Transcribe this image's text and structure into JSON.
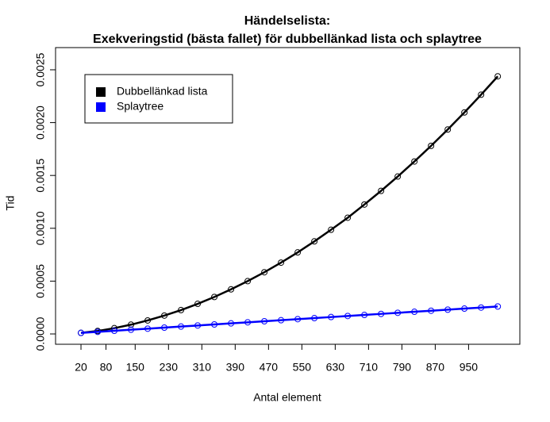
{
  "chart_data": {
    "type": "line",
    "title": "Händelselista:",
    "subtitle": "Exekveringstid (bästa fallet) för dubbellänkad lista och splaytree",
    "x_label": "Antal element",
    "y_label": "Tid",
    "x": [
      20,
      60,
      100,
      140,
      180,
      220,
      260,
      300,
      340,
      380,
      420,
      460,
      500,
      540,
      580,
      620,
      660,
      700,
      740,
      780,
      820,
      860,
      900,
      940,
      980,
      1020
    ],
    "series": [
      {
        "name": "Dubbellänkad lista",
        "color": "#000000",
        "values": [
          1e-05,
          2.8e-05,
          5.5e-05,
          8.8e-05,
          0.000128,
          0.000174,
          0.000226,
          0.000285,
          0.00035,
          0.000422,
          0.0005,
          0.000584,
          0.000675,
          0.000772,
          0.000876,
          0.000986,
          0.0011,
          0.001225,
          0.001354,
          0.00149,
          0.001632,
          0.00178,
          0.001935,
          0.002096,
          0.002264,
          0.002438
        ]
      },
      {
        "name": "Splaytree",
        "color": "#0000ff",
        "values": [
          1e-05,
          2e-05,
          3e-05,
          4e-05,
          5e-05,
          6e-05,
          7e-05,
          8e-05,
          9e-05,
          0.0001,
          0.00011,
          0.00012,
          0.00013,
          0.00014,
          0.00015,
          0.00016,
          0.00017,
          0.00018,
          0.00019,
          0.0002,
          0.00021,
          0.00022,
          0.00023,
          0.00024,
          0.00025,
          0.00026
        ]
      }
    ],
    "xlim": [
      -41,
      1073
    ],
    "xticks": [
      20,
      80,
      150,
      230,
      310,
      390,
      470,
      550,
      630,
      710,
      790,
      870,
      950
    ],
    "ylim": [
      -9.76e-05,
      0.00271
    ],
    "yticks": [
      {
        "value": 0,
        "label": "0.0000"
      },
      {
        "value": 0.0005,
        "label": "0.0005"
      },
      {
        "value": 0.001,
        "label": "0.0010"
      },
      {
        "value": 0.0015,
        "label": "0.0015"
      },
      {
        "value": 0.002,
        "label": "0.0020"
      },
      {
        "value": 0.0025,
        "label": "0.0025"
      }
    ],
    "legend": "top-left",
    "grid": false
  }
}
